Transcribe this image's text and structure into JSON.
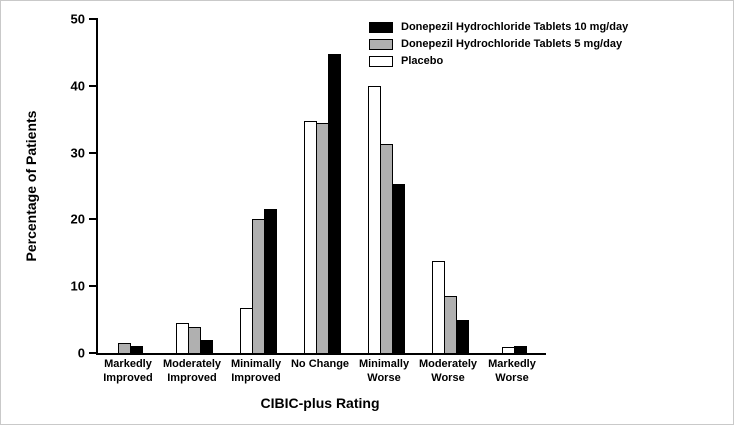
{
  "chart_data": {
    "type": "bar",
    "title": "",
    "xlabel": "CIBIC-plus Rating",
    "ylabel": "Percentage of Patients",
    "ylim": [
      0,
      50
    ],
    "yticks": [
      0,
      10,
      20,
      30,
      40,
      50
    ],
    "grid": false,
    "legend_position": "top-right",
    "categories": [
      "Markedly Improved",
      "Moderately Improved",
      "Minimally Improved",
      "No Change",
      "Minimally Worse",
      "Moderately Worse",
      "Markedly Worse"
    ],
    "series": [
      {
        "name": "Placebo",
        "color": "#ffffff",
        "values": [
          0,
          4.5,
          6.8,
          34.7,
          40.0,
          13.7,
          0.9
        ]
      },
      {
        "name": "Donepezil Hydrochloride Tablets 5 mg/day",
        "color": "#b0b0b0",
        "values": [
          1.5,
          3.9,
          20.0,
          34.5,
          31.3,
          8.5,
          0
        ]
      },
      {
        "name": "Donepezil Hydrochloride Tablets 10 mg/day",
        "color": "#000000",
        "values": [
          1.1,
          2.0,
          21.5,
          44.7,
          25.3,
          4.9,
          1.1
        ]
      }
    ],
    "legend": [
      {
        "label": "Donepezil Hydrochloride Tablets 10 mg/day",
        "color": "#000000"
      },
      {
        "label": "Donepezil Hydrochloride Tablets 5 mg/day",
        "color": "#b0b0b0"
      },
      {
        "label": "Placebo",
        "color": "#ffffff"
      }
    ]
  }
}
